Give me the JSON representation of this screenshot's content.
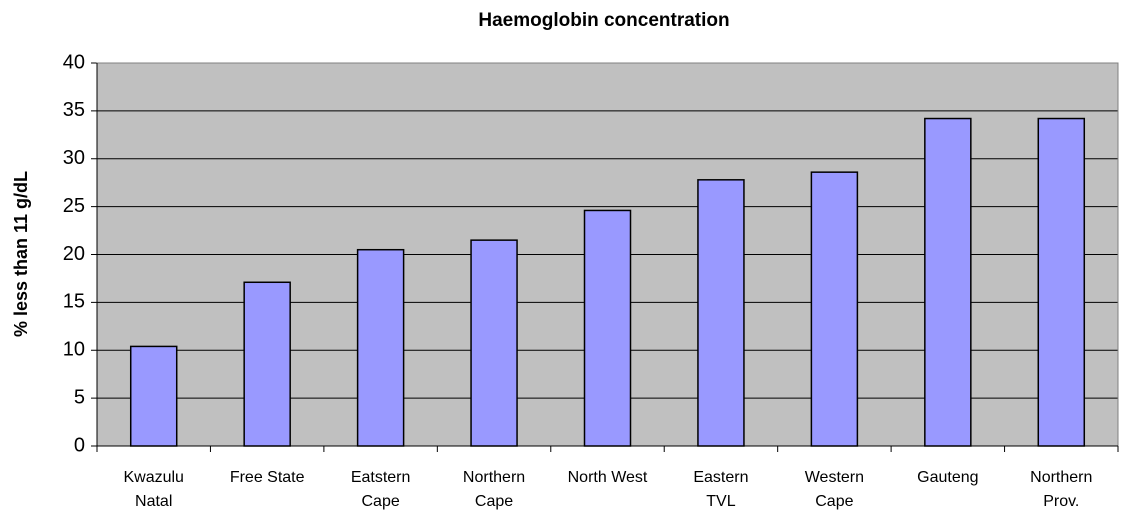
{
  "chart_data": {
    "type": "bar",
    "title": "Haemoglobin concentration",
    "y_label": "% less than 11 g/dL",
    "categories": [
      [
        "Kwazulu",
        "Natal"
      ],
      [
        "Free State"
      ],
      [
        "Eatstern",
        "Cape"
      ],
      [
        "Northern",
        "Cape"
      ],
      [
        "North West"
      ],
      [
        "Eastern",
        "TVL"
      ],
      [
        "Western",
        "Cape"
      ],
      [
        "Gauteng"
      ],
      [
        "Northern",
        "Prov."
      ]
    ],
    "values": [
      10.4,
      17.1,
      20.5,
      21.5,
      24.6,
      27.8,
      28.6,
      34.2,
      34.2
    ],
    "color": "#9999ff",
    "plot_background": "#c0c0c0",
    "ylim": [
      0,
      40
    ],
    "yticks": [
      0,
      5,
      10,
      15,
      20,
      25,
      30,
      35,
      40
    ],
    "grid": true
  }
}
